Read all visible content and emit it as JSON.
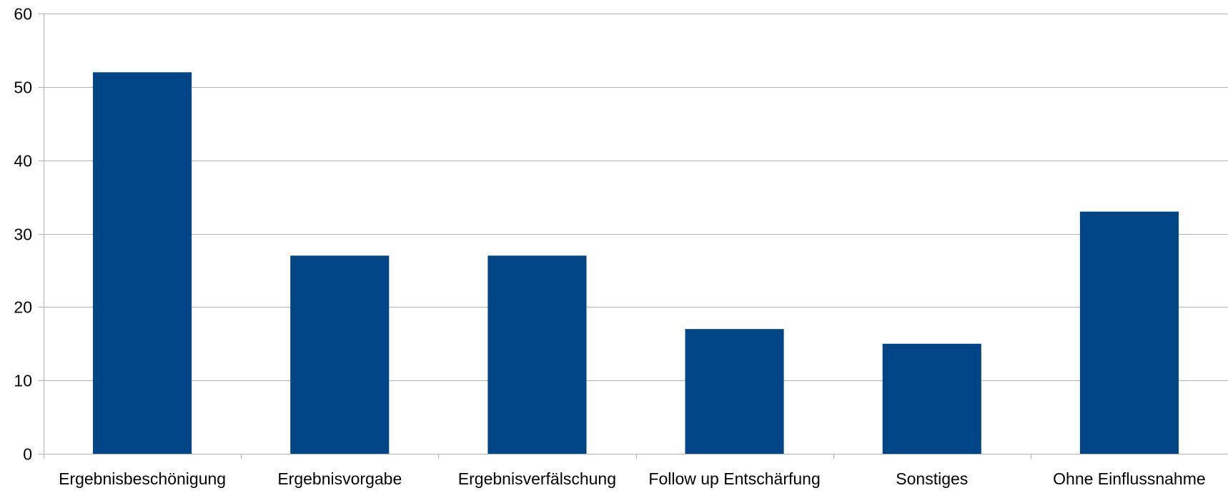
{
  "chart_data": {
    "type": "bar",
    "categories": [
      "Ergebnisbeschönigung",
      "Ergebnisvorgabe",
      "Ergebnisverfälschung",
      "Follow up Entschärfung",
      "Sonstiges",
      "Ohne Einflussnahme"
    ],
    "values": [
      52,
      27,
      27,
      17,
      15,
      33
    ],
    "ylim": [
      0,
      60
    ],
    "yticks": [
      0,
      10,
      20,
      30,
      40,
      50,
      60
    ],
    "grid": true,
    "legend": "none",
    "bar_color": "#004586",
    "grid_color": "#b3b3b3",
    "axis_color": "#b3b3b3"
  }
}
